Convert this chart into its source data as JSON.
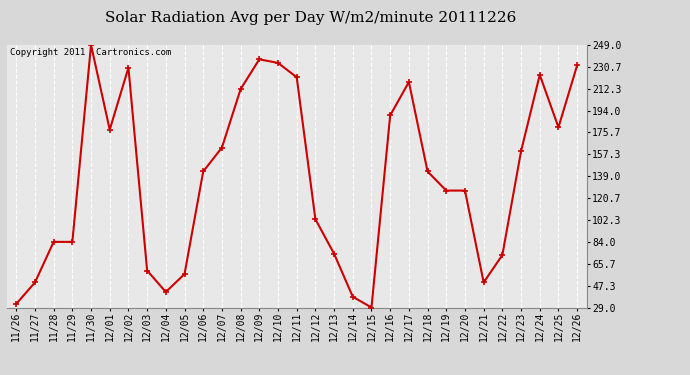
{
  "title": "Solar Radiation Avg per Day W/m2/minute 20111226",
  "copyright": "Copyright 2011  Cartronics.com",
  "labels": [
    "11/26",
    "11/27",
    "11/28",
    "11/29",
    "11/30",
    "12/01",
    "12/02",
    "12/03",
    "12/04",
    "12/05",
    "12/06",
    "12/07",
    "12/08",
    "12/09",
    "12/10",
    "12/11",
    "12/12",
    "12/13",
    "12/14",
    "12/15",
    "12/16",
    "12/17",
    "12/18",
    "12/19",
    "12/20",
    "12/21",
    "12/22",
    "12/23",
    "12/24",
    "12/25",
    "12/26"
  ],
  "values": [
    32,
    50,
    84,
    84,
    249,
    178,
    230,
    60,
    42,
    57,
    143,
    163,
    212,
    237,
    234,
    222,
    103,
    74,
    38,
    29,
    190,
    218,
    143,
    127,
    127,
    50,
    73,
    160,
    224,
    180,
    232
  ],
  "line_color": "#cc0000",
  "marker_color": "#cc0000",
  "bg_color": "#d8d8d8",
  "plot_bg": "#e8e8e8",
  "grid_color": "#ffffff",
  "yticks": [
    29.0,
    47.3,
    65.7,
    84.0,
    102.3,
    120.7,
    139.0,
    157.3,
    175.7,
    194.0,
    212.3,
    230.7,
    249.0
  ],
  "ytick_labels": [
    "29.0",
    "47.3",
    "65.7",
    "84.0",
    "102.3",
    "120.7",
    "139.0",
    "157.3",
    "175.7",
    "194.0",
    "212.3",
    "230.7",
    "249.0"
  ],
  "ymin": 29.0,
  "ymax": 249.0,
  "title_fontsize": 11,
  "tick_fontsize": 7,
  "copyright_fontsize": 6.5,
  "linewidth": 1.5,
  "markersize": 4
}
